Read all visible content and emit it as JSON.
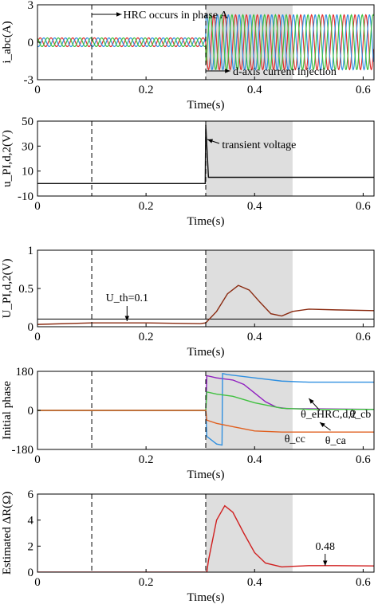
{
  "chart_data": [
    {
      "id": "p1",
      "type": "line",
      "ylabel": "i_abc(A)",
      "xlabel": "Time(s)",
      "xlim": [
        0,
        0.62
      ],
      "ylim": [
        -3,
        3
      ],
      "yticks": [
        "3",
        "0",
        "-3"
      ],
      "ytick_values": [
        3,
        0,
        -3
      ],
      "xticks": [
        "0",
        "0.2",
        "0.4",
        "0.6"
      ],
      "xtick_values": [
        0,
        0.2,
        0.4,
        0.6
      ],
      "annotations": [
        "HRC occurs in phase A",
        "d-axis current injection"
      ],
      "series": [
        {
          "color": "#e03030",
          "amp_before": 0.35,
          "amp_after": 2.2
        },
        {
          "color": "#3090e0",
          "amp_before": 0.35,
          "amp_after": 2.2
        },
        {
          "color": "#40c040",
          "amp_before": 0.35,
          "amp_after": 2.2
        }
      ]
    },
    {
      "id": "p2",
      "type": "line",
      "ylabel": "u_PI,d,2(V)",
      "xlabel": "Time(s)",
      "xlim": [
        0,
        0.62
      ],
      "ylim": [
        -10,
        50
      ],
      "yticks": [
        "50",
        "30",
        "10",
        "-10"
      ],
      "ytick_values": [
        50,
        30,
        10,
        -10
      ],
      "xticks": [
        "0",
        "0.2",
        "0.4",
        "0.6"
      ],
      "xtick_values": [
        0,
        0.2,
        0.4,
        0.6
      ],
      "annotations": [
        "transient voltage"
      ],
      "series": [
        {
          "color": "#111111",
          "x": [
            0,
            0.3,
            0.309,
            0.31,
            0.315,
            0.33,
            0.62
          ],
          "y": [
            0,
            0,
            0,
            47,
            5,
            5,
            5
          ]
        }
      ]
    },
    {
      "id": "p3",
      "type": "line",
      "ylabel": "U_PI,d,2(V)",
      "xlabel": "Time(s)",
      "xlim": [
        0,
        0.62
      ],
      "ylim": [
        0,
        1
      ],
      "yticks": [
        "1",
        "0.5",
        "0"
      ],
      "ytick_values": [
        1,
        0.5,
        0
      ],
      "xticks": [
        "0",
        "0.2",
        "0.4",
        "0.6"
      ],
      "xtick_values": [
        0,
        0.2,
        0.4,
        0.6
      ],
      "threshold": 0.1,
      "annotations": [
        "U_th=0.1"
      ],
      "series": [
        {
          "color": "#8a2a10",
          "x": [
            0,
            0.1,
            0.2,
            0.3,
            0.31,
            0.33,
            0.35,
            0.37,
            0.39,
            0.41,
            0.43,
            0.45,
            0.47,
            0.5,
            0.55,
            0.62
          ],
          "y": [
            0.03,
            0.05,
            0.05,
            0.04,
            0.05,
            0.2,
            0.43,
            0.54,
            0.48,
            0.32,
            0.17,
            0.14,
            0.2,
            0.23,
            0.22,
            0.21
          ]
        }
      ]
    },
    {
      "id": "p4",
      "type": "line",
      "ylabel": "Initial phase",
      "xlabel": "Time(s)",
      "xlim": [
        0,
        0.62
      ],
      "ylim": [
        -180,
        180
      ],
      "yticks": [
        "180",
        "0",
        "-180"
      ],
      "ytick_values": [
        180,
        0,
        -180
      ],
      "xticks": [
        "0",
        "0.2",
        "0.4",
        "0.6"
      ],
      "xtick_values": [
        0,
        0.2,
        0.4,
        0.6
      ],
      "annotations": [
        "θ_eHRC,d,2",
        "θ_cb",
        "θ_cc",
        "θ_ca"
      ],
      "series": [
        {
          "name": "θ_eHRC,d,2",
          "color": "#9020c0",
          "x": [
            0,
            0.31,
            0.312,
            0.33,
            0.36,
            0.38,
            0.4,
            0.42,
            0.44,
            0.46,
            0.62
          ],
          "y": [
            0,
            0,
            160,
            150,
            140,
            120,
            80,
            40,
            15,
            8,
            5
          ]
        },
        {
          "name": "θ_cb",
          "color": "#3090e0",
          "x": [
            0,
            0.31,
            0.312,
            0.33,
            0.34,
            0.341,
            0.35,
            0.4,
            0.45,
            0.5,
            0.62
          ],
          "y": [
            0,
            0,
            -120,
            -155,
            -160,
            170,
            165,
            150,
            135,
            130,
            130
          ]
        },
        {
          "name": "θ_ca",
          "color": "#40c040",
          "x": [
            0,
            0.31,
            0.312,
            0.33,
            0.36,
            0.4,
            0.45,
            0.5,
            0.62
          ],
          "y": [
            0,
            0,
            85,
            75,
            65,
            35,
            10,
            5,
            5
          ]
        },
        {
          "name": "θ_cc",
          "color": "#e06020",
          "x": [
            0,
            0.31,
            0.312,
            0.33,
            0.36,
            0.4,
            0.45,
            0.5,
            0.62
          ],
          "y": [
            0,
            0,
            -45,
            -60,
            -75,
            -95,
            -100,
            -100,
            -100
          ]
        }
      ]
    },
    {
      "id": "p5",
      "type": "line",
      "ylabel": "Estimated ΔR(Ω)",
      "xlabel": "Time(s)",
      "xlim": [
        0,
        0.62
      ],
      "ylim": [
        0,
        6
      ],
      "yticks": [
        "6",
        "4",
        "2",
        "0"
      ],
      "ytick_values": [
        6,
        4,
        2,
        0
      ],
      "xticks": [
        "0",
        "0.2",
        "0.4",
        "0.6"
      ],
      "xtick_values": [
        0,
        0.2,
        0.4,
        0.6
      ],
      "annotations": [
        "0.48"
      ],
      "series": [
        {
          "color": "#d02020",
          "x": [
            0,
            0.31,
            0.312,
            0.315,
            0.33,
            0.345,
            0.36,
            0.38,
            0.4,
            0.42,
            0.45,
            0.47,
            0.5,
            0.55,
            0.62
          ],
          "y": [
            0,
            0,
            0,
            0.9,
            4.0,
            5.1,
            4.6,
            3.0,
            1.5,
            0.7,
            0.4,
            0.45,
            0.5,
            0.5,
            0.48
          ]
        }
      ]
    }
  ]
}
